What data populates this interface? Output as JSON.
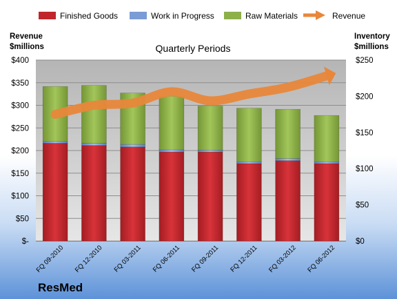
{
  "chart_data": {
    "type": "bar",
    "title": "Quarterly Periods",
    "company": "ResMed",
    "left_axis": {
      "label_line1": "Revenue",
      "label_line2": "$millions",
      "ylim": [
        0,
        400
      ],
      "ticks": [
        {
          "v": 0,
          "t": "$-"
        },
        {
          "v": 50,
          "t": "$50"
        },
        {
          "v": 100,
          "t": "$100"
        },
        {
          "v": 150,
          "t": "$150"
        },
        {
          "v": 200,
          "t": "$200"
        },
        {
          "v": 250,
          "t": "$250"
        },
        {
          "v": 300,
          "t": "$300"
        },
        {
          "v": 350,
          "t": "$350"
        },
        {
          "v": 400,
          "t": "$400"
        }
      ]
    },
    "right_axis": {
      "label_line1": "Inventory",
      "label_line2": "$millions",
      "ylim": [
        0,
        250
      ],
      "ticks": [
        {
          "v": 0,
          "t": "$0"
        },
        {
          "v": 50,
          "t": "$50"
        },
        {
          "v": 100,
          "t": "$100"
        },
        {
          "v": 150,
          "t": "$150"
        },
        {
          "v": 200,
          "t": "$200"
        },
        {
          "v": 250,
          "t": "$250"
        }
      ]
    },
    "categories": [
      "FQ 09-2010",
      "FQ 12-2010",
      "FQ 03-2011",
      "FQ 06-2011",
      "FQ 09-2011",
      "FQ 12-2011",
      "FQ 03-2012",
      "FQ 06-2012"
    ],
    "series": [
      {
        "name": "Finished Goods",
        "color": "#c0262c",
        "values": [
          135,
          132,
          130,
          123,
          123,
          107,
          111,
          107
        ]
      },
      {
        "name": "Work in Progress",
        "color": "#7a9cd6",
        "values": [
          2.5,
          3,
          3.5,
          3,
          2.5,
          2.5,
          3,
          2.5
        ]
      },
      {
        "name": "Raw Materials",
        "color": "#8db04a",
        "values": [
          76,
          80,
          71,
          74,
          61,
          74,
          68,
          64
        ]
      }
    ],
    "line_series": {
      "name": "Revenue",
      "color": "#e8873a",
      "axis": "left",
      "values": [
        280,
        300,
        305,
        330,
        310,
        325,
        340,
        365
      ]
    },
    "grid": true,
    "legend_position": "top"
  }
}
